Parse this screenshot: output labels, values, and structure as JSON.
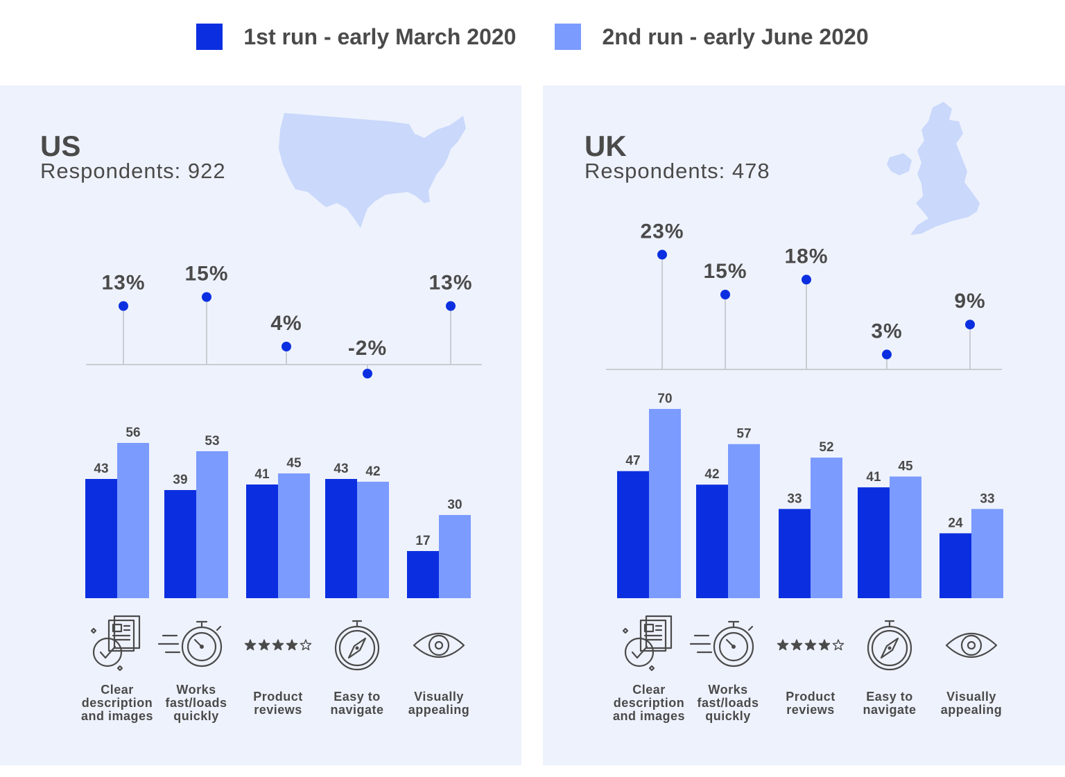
{
  "legend": {
    "series1": {
      "label": "1st run - early March 2020",
      "color": "#0b2fe0"
    },
    "series2": {
      "label": "2nd run - early June 2020",
      "color": "#7b9bff"
    }
  },
  "colors": {
    "dot": "#0b2fe0",
    "stem": "#c9ccd3",
    "panel_bg": "#eef2fc",
    "map": "#c9d8fb",
    "text": "#4a4a4a"
  },
  "categories": [
    {
      "lines": [
        "Clear",
        "description",
        "and images"
      ],
      "icon": "document-checkmark-icon"
    },
    {
      "lines": [
        "Works",
        "fast/loads",
        "quickly"
      ],
      "icon": "stopwatch-icon"
    },
    {
      "lines": [
        "Product",
        "reviews"
      ],
      "icon": "star-rating-icon"
    },
    {
      "lines": [
        "Easy to",
        "navigate"
      ],
      "icon": "compass-icon"
    },
    {
      "lines": [
        "Visually",
        "appealing"
      ],
      "icon": "eye-icon"
    }
  ],
  "chart_data": [
    {
      "type": "bar",
      "title": "US",
      "subtitle": "Respondents: 922",
      "map_icon": "us-map-icon",
      "categories": [
        "Clear description and images",
        "Works fast/loads quickly",
        "Product reviews",
        "Easy to navigate",
        "Visually appealing"
      ],
      "series": [
        {
          "name": "1st run - early March 2020",
          "values": [
            43,
            39,
            41,
            43,
            17
          ]
        },
        {
          "name": "2nd run - early June 2020",
          "values": [
            56,
            53,
            45,
            42,
            30
          ]
        }
      ],
      "change": {
        "type": "lollipop",
        "values": [
          13,
          15,
          4,
          -2,
          13
        ],
        "labels": [
          "13%",
          "15%",
          "4%",
          "-2%",
          "13%"
        ]
      }
    },
    {
      "type": "bar",
      "title": "UK",
      "subtitle": "Respondents: 478",
      "map_icon": "uk-map-icon",
      "categories": [
        "Clear description and images",
        "Works fast/loads quickly",
        "Product reviews",
        "Easy to navigate",
        "Visually appealing"
      ],
      "series": [
        {
          "name": "1st run - early March 2020",
          "values": [
            47,
            42,
            33,
            41,
            24
          ]
        },
        {
          "name": "2nd run - early June 2020",
          "values": [
            70,
            57,
            52,
            45,
            33
          ]
        }
      ],
      "change": {
        "type": "lollipop",
        "values": [
          23,
          15,
          18,
          3,
          9
        ],
        "labels": [
          "23%",
          "15%",
          "18%",
          "3%",
          "9%"
        ]
      }
    }
  ]
}
